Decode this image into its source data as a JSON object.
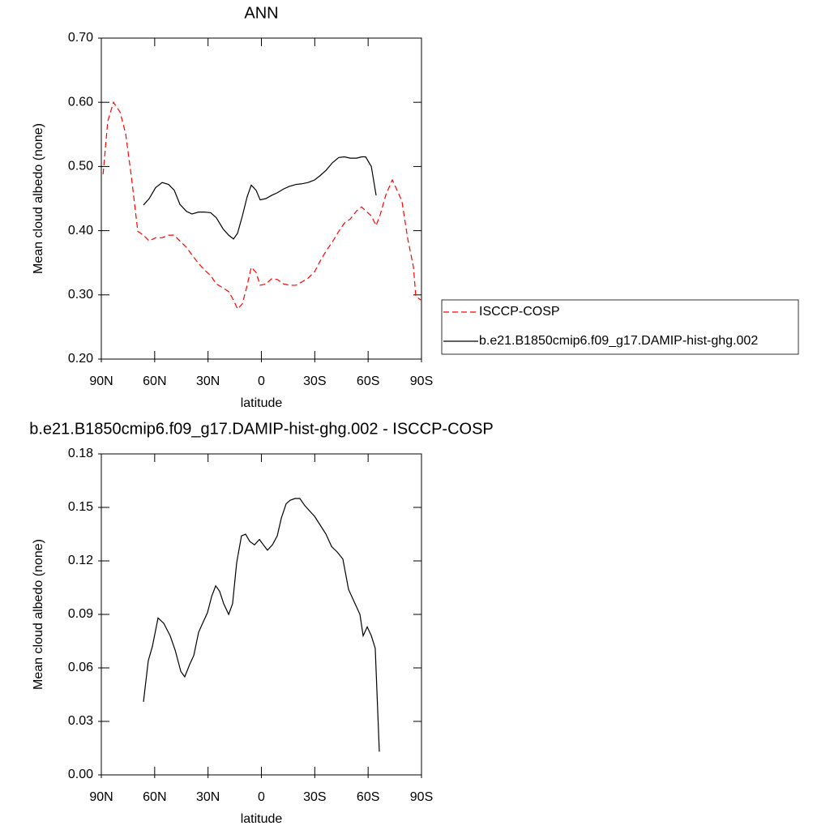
{
  "chart_data": [
    {
      "type": "line",
      "title": "ANN",
      "xlabel": "latitude",
      "ylabel": "Mean cloud albedo (none)",
      "x": [
        89,
        86.4,
        83.2,
        79.5,
        76.3,
        73,
        69.5,
        66.3,
        63.1,
        59.5,
        55.8,
        52.2,
        49,
        45.8,
        42.1,
        39,
        35.3,
        32.1,
        28.5,
        25.3,
        21.6,
        18.4,
        15.7,
        13.4,
        10.7,
        8,
        5.7,
        3,
        0.7,
        -2.5,
        -5.7,
        -8.9,
        -12.5,
        -15.7,
        -19.4,
        -22.6,
        -26.2,
        -29.9,
        -33.1,
        -36.3,
        -40,
        -43.5,
        -46.7,
        -49.9,
        -53.6,
        -56.3,
        -58.6,
        -61.8,
        -64.5,
        -66.8,
        -70,
        -73.6,
        -76.3,
        -79,
        -82.3,
        -85.5,
        -86.8,
        -89.6
      ],
      "series": [
        {
          "name": "ISCCP-COSP",
          "color": "#ff0000",
          "dashed": true,
          "values": [
            0.488,
            0.57,
            0.6,
            0.585,
            0.551,
            0.482,
            0.399,
            0.393,
            0.384,
            0.389,
            0.389,
            0.393,
            0.393,
            0.384,
            0.374,
            0.362,
            0.349,
            0.339,
            0.33,
            0.317,
            0.311,
            0.305,
            0.292,
            0.278,
            0.286,
            0.315,
            0.343,
            0.335,
            0.315,
            0.317,
            0.325,
            0.324,
            0.317,
            0.315,
            0.315,
            0.32,
            0.326,
            0.336,
            0.353,
            0.368,
            0.383,
            0.399,
            0.412,
            0.418,
            0.431,
            0.437,
            0.431,
            0.423,
            0.408,
            0.425,
            0.456,
            0.479,
            0.463,
            0.446,
            0.387,
            0.343,
            0.298,
            0.292
          ]
        },
        {
          "name": "b.e21.B1850cmip6.f09_g17.DAMIP-hist-ghg.002",
          "color": "#000000",
          "dashed": false,
          "values": [
            null,
            null,
            null,
            null,
            null,
            null,
            null,
            0.44,
            0.45,
            0.467,
            0.475,
            0.472,
            0.463,
            0.441,
            0.43,
            0.426,
            0.429,
            0.429,
            0.428,
            0.42,
            0.403,
            0.393,
            0.387,
            0.396,
            0.423,
            0.453,
            0.471,
            0.463,
            0.448,
            0.45,
            0.455,
            0.459,
            0.465,
            0.469,
            0.472,
            0.473,
            0.475,
            0.479,
            0.486,
            0.494,
            0.506,
            0.514,
            0.515,
            0.513,
            0.513,
            0.515,
            0.515,
            0.5,
            0.455,
            null,
            null,
            null,
            null,
            null,
            null,
            null,
            null,
            null
          ]
        }
      ],
      "xlim": [
        90,
        -90
      ],
      "xticks": [
        {
          "value": 90,
          "label": "90N"
        },
        {
          "value": 60,
          "label": "60N"
        },
        {
          "value": 30,
          "label": "30N"
        },
        0,
        {
          "value": -30,
          "label": "30S"
        },
        {
          "value": -60,
          "label": "60S"
        },
        {
          "value": -90,
          "label": "90S"
        }
      ],
      "ylim": [
        0.2,
        0.7
      ],
      "yticks": [
        {
          "value": 0.2,
          "label": "0.20"
        },
        {
          "value": 0.3,
          "label": "0.30"
        },
        {
          "value": 0.4,
          "label": "0.40"
        },
        {
          "value": 0.5,
          "label": "0.50"
        },
        {
          "value": 0.6,
          "label": "0.60"
        },
        {
          "value": 0.7,
          "label": "0.70"
        }
      ],
      "legend": "right"
    },
    {
      "type": "line",
      "title": "b.e21.B1850cmip6.f09_g17.DAMIP-hist-ghg.002 - ISCCP-COSP",
      "xlabel": "latitude",
      "ylabel": "Mean cloud albedo (none)",
      "x": [
        66.3,
        63.6,
        61.3,
        58.1,
        54.9,
        51.3,
        48.5,
        45.3,
        43.1,
        40.3,
        38,
        35.3,
        32.6,
        30.3,
        28,
        25.7,
        23.5,
        21.2,
        18.4,
        16.2,
        13.9,
        11.2,
        8.9,
        6.6,
        3.9,
        1.1,
        -1.1,
        -3.4,
        -6.2,
        -8.9,
        -11.2,
        -13.9,
        -16.2,
        -18.9,
        -21.6,
        -24.4,
        -27.1,
        -29.9,
        -33.1,
        -36.3,
        -39.5,
        -42.6,
        -45.8,
        -49,
        -52.2,
        -55.4,
        -57.2,
        -59.5,
        -61.8,
        -64,
        -66.3
      ],
      "series": [
        {
          "color": "#000000",
          "dashed": false,
          "values": [
            0.041,
            0.064,
            0.072,
            0.088,
            0.085,
            0.078,
            0.07,
            0.058,
            0.055,
            0.062,
            0.067,
            0.08,
            0.086,
            0.091,
            0.1,
            0.106,
            0.103,
            0.096,
            0.09,
            0.096,
            0.119,
            0.134,
            0.135,
            0.131,
            0.129,
            0.132,
            0.129,
            0.126,
            0.129,
            0.134,
            0.144,
            0.152,
            0.154,
            0.155,
            0.155,
            0.151,
            0.148,
            0.145,
            0.14,
            0.135,
            0.128,
            0.125,
            0.121,
            0.104,
            0.097,
            0.09,
            0.078,
            0.083,
            0.078,
            0.071,
            0.013
          ]
        }
      ],
      "xlim": [
        90,
        -90
      ],
      "xticks": [
        {
          "value": 90,
          "label": "90N"
        },
        {
          "value": 60,
          "label": "60N"
        },
        {
          "value": 30,
          "label": "30N"
        },
        0,
        {
          "value": -30,
          "label": "30S"
        },
        {
          "value": -60,
          "label": "60S"
        },
        {
          "value": -90,
          "label": "90S"
        }
      ],
      "ylim": [
        0,
        0.18
      ],
      "yticks": [
        {
          "value": 0,
          "label": "0.00"
        },
        {
          "value": 0.03,
          "label": "0.03"
        },
        {
          "value": 0.06,
          "label": "0.06"
        },
        {
          "value": 0.09,
          "label": "0.09"
        },
        {
          "value": 0.12,
          "label": "0.12"
        },
        {
          "value": 0.15,
          "label": "0.15"
        },
        {
          "value": 0.18,
          "label": "0.18"
        }
      ]
    }
  ]
}
